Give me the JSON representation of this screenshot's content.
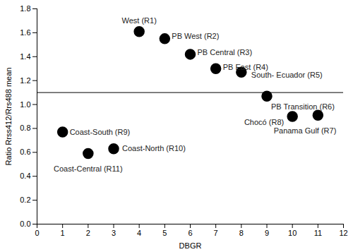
{
  "chart_data": {
    "type": "scatter",
    "x_label": "DBGR",
    "y_label": "Ratio Rrss412/Rrs488 mean",
    "xlim": [
      0,
      12
    ],
    "xticks": [
      0,
      1,
      2,
      3,
      4,
      5,
      6,
      7,
      8,
      9,
      10,
      11,
      12
    ],
    "ylim": [
      0,
      1.8
    ],
    "yticks": [
      {
        "value": 0,
        "label": "0.0"
      },
      0.2,
      0.4,
      0.6,
      0.8,
      {
        "value": 1,
        "label": "1.0"
      },
      1.2,
      1.4,
      1.6,
      1.8
    ],
    "reference_line": 1.1,
    "color": "#000000",
    "marker": "circle",
    "points": [
      {
        "label": "West (R1)",
        "x": 4,
        "y": 1.61
      },
      {
        "label": "PB West (R2)",
        "x": 5,
        "y": 1.55
      },
      {
        "label": "PB Central (R3)",
        "x": 6,
        "y": 1.42
      },
      {
        "label": "PB East (R4)",
        "x": 7,
        "y": 1.3
      },
      {
        "label": "South- Ecuador (R5)",
        "x": 8,
        "y": 1.27
      },
      {
        "label": "PB Transition (R6)",
        "x": 9,
        "y": 1.07
      },
      {
        "label": "Panama Gulf (R7)",
        "x": 11,
        "y": 0.91
      },
      {
        "label": "Chocó (R8)",
        "x": 10,
        "y": 0.9
      },
      {
        "label": "Coast-South (R9)",
        "x": 1,
        "y": 0.77
      },
      {
        "label": "Coast-North (R10)",
        "x": 3,
        "y": 0.63
      },
      {
        "label": "Coast-Central (R11)",
        "x": 2,
        "y": 0.59
      }
    ]
  }
}
